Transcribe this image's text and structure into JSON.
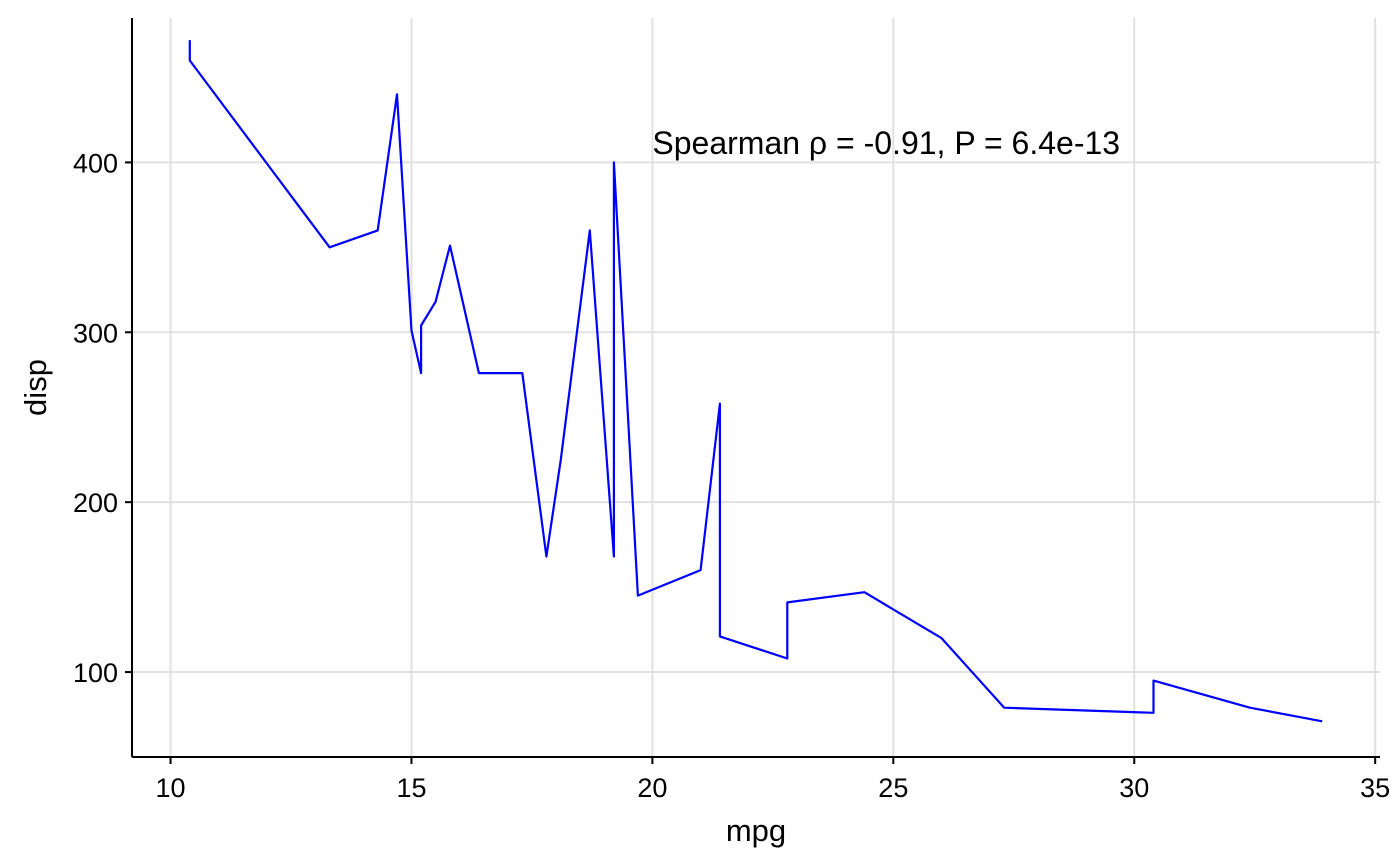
{
  "chart_data": {
    "type": "line",
    "title": "",
    "xlabel": "mpg",
    "ylabel": "disp",
    "xlim": [
      9.2,
      35.1
    ],
    "ylim": [
      50,
      485
    ],
    "x_ticks": [
      10,
      15,
      20,
      25,
      30,
      35
    ],
    "y_ticks": [
      100,
      200,
      300,
      400
    ],
    "grid": true,
    "annotation": {
      "text": "Spearman ρ = -0.91, P = 6.4e-13",
      "x": 20,
      "y": 405
    },
    "series": [
      {
        "color": "#0000ff",
        "points": [
          [
            10.4,
            472
          ],
          [
            10.4,
            460
          ],
          [
            13.3,
            350
          ],
          [
            14.3,
            360
          ],
          [
            14.7,
            440
          ],
          [
            15.0,
            301
          ],
          [
            15.2,
            276
          ],
          [
            15.2,
            304
          ],
          [
            15.5,
            318
          ],
          [
            15.8,
            351
          ],
          [
            16.4,
            276
          ],
          [
            17.3,
            276
          ],
          [
            17.8,
            168
          ],
          [
            18.1,
            225
          ],
          [
            18.7,
            360
          ],
          [
            19.2,
            168
          ],
          [
            19.2,
            400
          ],
          [
            19.7,
            145
          ],
          [
            21.0,
            160
          ],
          [
            21.4,
            258
          ],
          [
            21.4,
            121
          ],
          [
            22.8,
            108
          ],
          [
            22.8,
            141
          ],
          [
            24.4,
            147
          ],
          [
            26.0,
            120
          ],
          [
            27.3,
            79
          ],
          [
            30.4,
            76
          ],
          [
            30.4,
            95
          ],
          [
            32.4,
            79
          ],
          [
            33.9,
            71
          ]
        ]
      }
    ]
  }
}
